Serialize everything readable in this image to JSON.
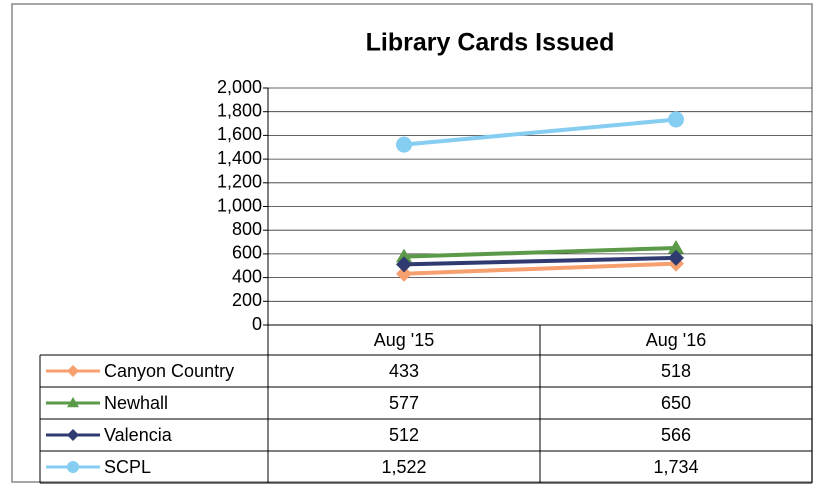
{
  "chart_data": {
    "type": "line",
    "title": "Library Cards Issued",
    "categories": [
      "Aug '15",
      "Aug '16"
    ],
    "series": [
      {
        "name": "Canyon Country",
        "color": "#f5a06e",
        "marker": "diamond",
        "values": [
          433,
          518
        ]
      },
      {
        "name": "Newhall",
        "color": "#5b9a48",
        "marker": "triangle",
        "values": [
          577,
          650
        ]
      },
      {
        "name": "Valencia",
        "color": "#2f3b70",
        "marker": "diamond",
        "values": [
          512,
          566
        ]
      },
      {
        "name": "SCPL",
        "color": "#86cdf2",
        "marker": "circle",
        "values": [
          1522,
          1734
        ],
        "value_labels": [
          "1,522",
          "1,734"
        ]
      }
    ],
    "ylim": [
      0,
      2000
    ],
    "yticks": [
      0,
      200,
      400,
      600,
      800,
      {
        "value": 1000,
        "label": "1,000"
      },
      {
        "value": 1200,
        "label": "1,200"
      },
      {
        "value": 1400,
        "label": "1,400"
      },
      {
        "value": 1600,
        "label": "1,600"
      },
      {
        "value": 1800,
        "label": "1,800"
      },
      {
        "value": 2000,
        "label": "2,000"
      }
    ],
    "grid": true
  }
}
